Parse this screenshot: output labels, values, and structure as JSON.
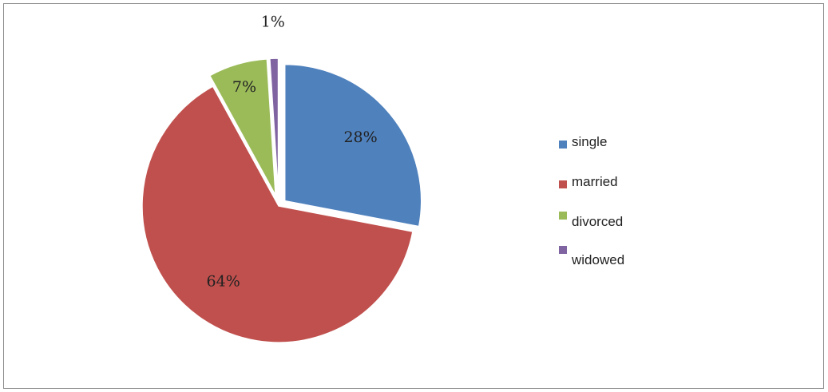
{
  "chart_data": {
    "type": "pie",
    "categories": [
      "single",
      "married",
      "divorced",
      "widowed"
    ],
    "values": [
      28,
      64,
      7,
      1
    ],
    "labels": [
      "28%",
      "64%",
      "7%",
      "1%"
    ],
    "colors": [
      "#4f81bd",
      "#c0504d",
      "#9bbb59",
      "#8064a2"
    ],
    "legend_position": "right",
    "exploded": true
  }
}
